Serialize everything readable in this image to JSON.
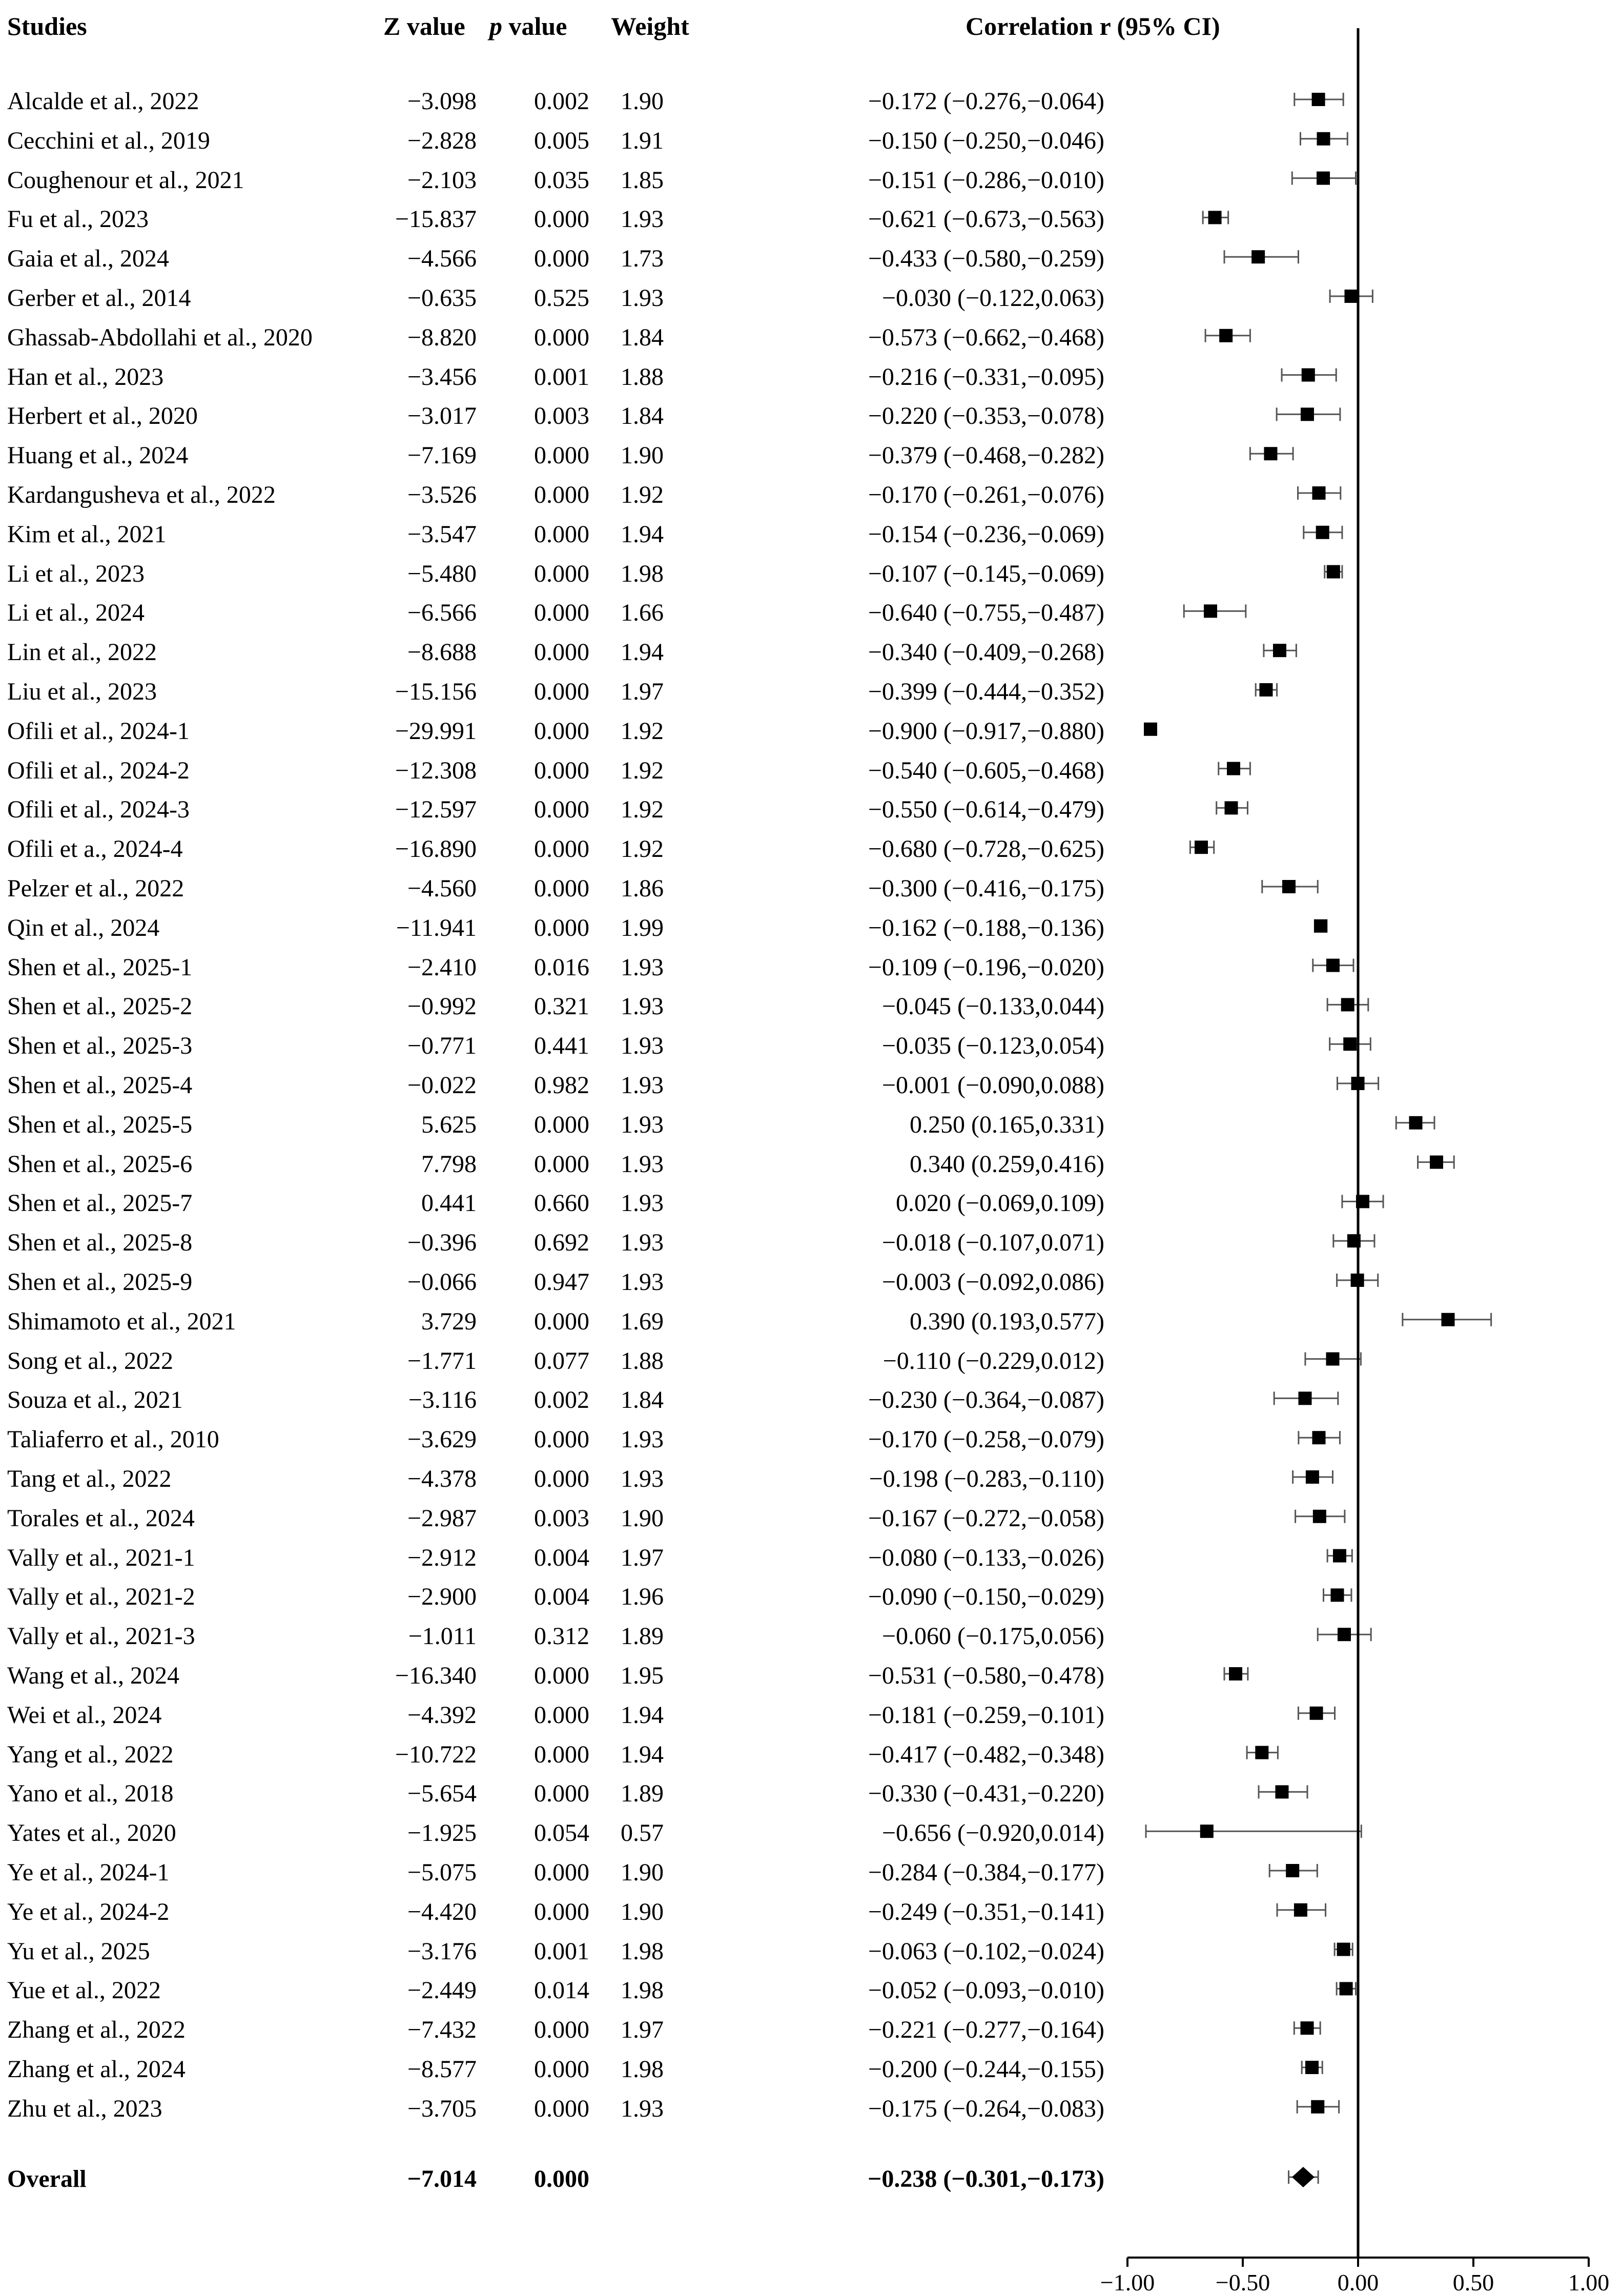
{
  "headers": {
    "study": "Studies",
    "z_value": "Z value",
    "p_value_italic": "p",
    "p_value_rest": "value",
    "weight": "Weight",
    "effect": "Correlation r (95% CI)"
  },
  "chart_data": {
    "type": "forest",
    "xlim": [
      -1.0,
      1.0
    ],
    "reference_line": 0.0,
    "ticks": [
      -1.0,
      -0.5,
      0.0,
      0.5,
      1.0
    ],
    "tick_labels": [
      "−1.00",
      "−0.50",
      "0.00",
      "0.50",
      "1.00"
    ],
    "rows": [
      {
        "study": "Alcalde et al., 2022",
        "z": "−3.098",
        "p": "0.002",
        "weight": "1.90",
        "ci_text": "−0.172 (−0.276,−0.064)",
        "r": -0.172,
        "lo": -0.276,
        "hi": -0.064
      },
      {
        "study": "Cecchini et al., 2019",
        "z": "−2.828",
        "p": "0.005",
        "weight": "1.91",
        "ci_text": "−0.150 (−0.250,−0.046)",
        "r": -0.15,
        "lo": -0.25,
        "hi": -0.046
      },
      {
        "study": "Coughenour et al., 2021",
        "z": "−2.103",
        "p": "0.035",
        "weight": "1.85",
        "ci_text": "−0.151 (−0.286,−0.010)",
        "r": -0.151,
        "lo": -0.286,
        "hi": -0.01
      },
      {
        "study": "Fu et al., 2023",
        "z": "−15.837",
        "p": "0.000",
        "weight": "1.93",
        "ci_text": "−0.621 (−0.673,−0.563)",
        "r": -0.621,
        "lo": -0.673,
        "hi": -0.563
      },
      {
        "study": "Gaia et al., 2024",
        "z": "−4.566",
        "p": "0.000",
        "weight": "1.73",
        "ci_text": "−0.433 (−0.580,−0.259)",
        "r": -0.433,
        "lo": -0.58,
        "hi": -0.259
      },
      {
        "study": "Gerber et al., 2014",
        "z": "−0.635",
        "p": "0.525",
        "weight": "1.93",
        "ci_text": "−0.030 (−0.122,0.063)",
        "r": -0.03,
        "lo": -0.122,
        "hi": 0.063
      },
      {
        "study": "Ghassab-Abdollahi et al., 2020",
        "z": "−8.820",
        "p": "0.000",
        "weight": "1.84",
        "ci_text": "−0.573 (−0.662,−0.468)",
        "r": -0.573,
        "lo": -0.662,
        "hi": -0.468
      },
      {
        "study": "Han et al., 2023",
        "z": "−3.456",
        "p": "0.001",
        "weight": "1.88",
        "ci_text": "−0.216 (−0.331,−0.095)",
        "r": -0.216,
        "lo": -0.331,
        "hi": -0.095
      },
      {
        "study": "Herbert et al., 2020",
        "z": "−3.017",
        "p": "0.003",
        "weight": "1.84",
        "ci_text": "−0.220 (−0.353,−0.078)",
        "r": -0.22,
        "lo": -0.353,
        "hi": -0.078
      },
      {
        "study": "Huang et al., 2024",
        "z": "−7.169",
        "p": "0.000",
        "weight": "1.90",
        "ci_text": "−0.379 (−0.468,−0.282)",
        "r": -0.379,
        "lo": -0.468,
        "hi": -0.282
      },
      {
        "study": "Kardangusheva et al., 2022",
        "z": "−3.526",
        "p": "0.000",
        "weight": "1.92",
        "ci_text": "−0.170 (−0.261,−0.076)",
        "r": -0.17,
        "lo": -0.261,
        "hi": -0.076
      },
      {
        "study": "Kim et al., 2021",
        "z": "−3.547",
        "p": "0.000",
        "weight": "1.94",
        "ci_text": "−0.154 (−0.236,−0.069)",
        "r": -0.154,
        "lo": -0.236,
        "hi": -0.069
      },
      {
        "study": "Li et al., 2023",
        "z": "−5.480",
        "p": "0.000",
        "weight": "1.98",
        "ci_text": "−0.107 (−0.145,−0.069)",
        "r": -0.107,
        "lo": -0.145,
        "hi": -0.069
      },
      {
        "study": "Li et al., 2024",
        "z": "−6.566",
        "p": "0.000",
        "weight": "1.66",
        "ci_text": "−0.640 (−0.755,−0.487)",
        "r": -0.64,
        "lo": -0.755,
        "hi": -0.487
      },
      {
        "study": "Lin et al., 2022",
        "z": "−8.688",
        "p": "0.000",
        "weight": "1.94",
        "ci_text": "−0.340 (−0.409,−0.268)",
        "r": -0.34,
        "lo": -0.409,
        "hi": -0.268
      },
      {
        "study": "Liu et al., 2023",
        "z": "−15.156",
        "p": "0.000",
        "weight": "1.97",
        "ci_text": "−0.399 (−0.444,−0.352)",
        "r": -0.399,
        "lo": -0.444,
        "hi": -0.352
      },
      {
        "study": "Ofili et al., 2024-1",
        "z": "−29.991",
        "p": "0.000",
        "weight": "1.92",
        "ci_text": "−0.900 (−0.917,−0.880)",
        "r": -0.9,
        "lo": -0.917,
        "hi": -0.88
      },
      {
        "study": "Ofili et al., 2024-2",
        "z": "−12.308",
        "p": "0.000",
        "weight": "1.92",
        "ci_text": "−0.540 (−0.605,−0.468)",
        "r": -0.54,
        "lo": -0.605,
        "hi": -0.468
      },
      {
        "study": "Ofili et al., 2024-3",
        "z": "−12.597",
        "p": "0.000",
        "weight": "1.92",
        "ci_text": "−0.550 (−0.614,−0.479)",
        "r": -0.55,
        "lo": -0.614,
        "hi": -0.479
      },
      {
        "study": "Ofili et a., 2024-4",
        "z": "−16.890",
        "p": "0.000",
        "weight": "1.92",
        "ci_text": "−0.680 (−0.728,−0.625)",
        "r": -0.68,
        "lo": -0.728,
        "hi": -0.625
      },
      {
        "study": "Pelzer et al., 2022",
        "z": "−4.560",
        "p": "0.000",
        "weight": "1.86",
        "ci_text": "−0.300 (−0.416,−0.175)",
        "r": -0.3,
        "lo": -0.416,
        "hi": -0.175
      },
      {
        "study": "Qin et al., 2024",
        "z": "−11.941",
        "p": "0.000",
        "weight": "1.99",
        "ci_text": "−0.162 (−0.188,−0.136)",
        "r": -0.162,
        "lo": -0.188,
        "hi": -0.136
      },
      {
        "study": "Shen et al., 2025-1",
        "z": "−2.410",
        "p": "0.016",
        "weight": "1.93",
        "ci_text": "−0.109 (−0.196,−0.020)",
        "r": -0.109,
        "lo": -0.196,
        "hi": -0.02
      },
      {
        "study": "Shen et al., 2025-2",
        "z": "−0.992",
        "p": "0.321",
        "weight": "1.93",
        "ci_text": "−0.045 (−0.133,0.044)",
        "r": -0.045,
        "lo": -0.133,
        "hi": 0.044
      },
      {
        "study": "Shen et al., 2025-3",
        "z": "−0.771",
        "p": "0.441",
        "weight": "1.93",
        "ci_text": "−0.035 (−0.123,0.054)",
        "r": -0.035,
        "lo": -0.123,
        "hi": 0.054
      },
      {
        "study": "Shen et al., 2025-4",
        "z": "−0.022",
        "p": "0.982",
        "weight": "1.93",
        "ci_text": "−0.001 (−0.090,0.088)",
        "r": -0.001,
        "lo": -0.09,
        "hi": 0.088
      },
      {
        "study": "Shen et al., 2025-5",
        "z": "5.625",
        "p": "0.000",
        "weight": "1.93",
        "ci_text": "0.250 (0.165,0.331)",
        "r": 0.25,
        "lo": 0.165,
        "hi": 0.331
      },
      {
        "study": "Shen et al., 2025-6",
        "z": "7.798",
        "p": "0.000",
        "weight": "1.93",
        "ci_text": "0.340 (0.259,0.416)",
        "r": 0.34,
        "lo": 0.259,
        "hi": 0.416
      },
      {
        "study": "Shen et al., 2025-7",
        "z": "0.441",
        "p": "0.660",
        "weight": "1.93",
        "ci_text": "0.020 (−0.069,0.109)",
        "r": 0.02,
        "lo": -0.069,
        "hi": 0.109
      },
      {
        "study": "Shen et al., 2025-8",
        "z": "−0.396",
        "p": "0.692",
        "weight": "1.93",
        "ci_text": "−0.018 (−0.107,0.071)",
        "r": -0.018,
        "lo": -0.107,
        "hi": 0.071
      },
      {
        "study": "Shen et al., 2025-9",
        "z": "−0.066",
        "p": "0.947",
        "weight": "1.93",
        "ci_text": "−0.003 (−0.092,0.086)",
        "r": -0.003,
        "lo": -0.092,
        "hi": 0.086
      },
      {
        "study": "Shimamoto et al., 2021",
        "z": "3.729",
        "p": "0.000",
        "weight": "1.69",
        "ci_text": "0.390 (0.193,0.577)",
        "r": 0.39,
        "lo": 0.193,
        "hi": 0.577
      },
      {
        "study": "Song et al., 2022",
        "z": "−1.771",
        "p": "0.077",
        "weight": "1.88",
        "ci_text": "−0.110 (−0.229,0.012)",
        "r": -0.11,
        "lo": -0.229,
        "hi": 0.012
      },
      {
        "study": "Souza et al., 2021",
        "z": "−3.116",
        "p": "0.002",
        "weight": "1.84",
        "ci_text": "−0.230 (−0.364,−0.087)",
        "r": -0.23,
        "lo": -0.364,
        "hi": -0.087
      },
      {
        "study": "Taliaferro et al., 2010",
        "z": "−3.629",
        "p": "0.000",
        "weight": "1.93",
        "ci_text": "−0.170 (−0.258,−0.079)",
        "r": -0.17,
        "lo": -0.258,
        "hi": -0.079
      },
      {
        "study": "Tang et al., 2022",
        "z": "−4.378",
        "p": "0.000",
        "weight": "1.93",
        "ci_text": "−0.198 (−0.283,−0.110)",
        "r": -0.198,
        "lo": -0.283,
        "hi": -0.11
      },
      {
        "study": "Torales et al., 2024",
        "z": "−2.987",
        "p": "0.003",
        "weight": "1.90",
        "ci_text": "−0.167 (−0.272,−0.058)",
        "r": -0.167,
        "lo": -0.272,
        "hi": -0.058
      },
      {
        "study": "Vally et al., 2021-1",
        "z": "−2.912",
        "p": "0.004",
        "weight": "1.97",
        "ci_text": "−0.080 (−0.133,−0.026)",
        "r": -0.08,
        "lo": -0.133,
        "hi": -0.026
      },
      {
        "study": "Vally et al., 2021-2",
        "z": "−2.900",
        "p": "0.004",
        "weight": "1.96",
        "ci_text": "−0.090 (−0.150,−0.029)",
        "r": -0.09,
        "lo": -0.15,
        "hi": -0.029
      },
      {
        "study": "Vally et al., 2021-3",
        "z": "−1.011",
        "p": "0.312",
        "weight": "1.89",
        "ci_text": "−0.060 (−0.175,0.056)",
        "r": -0.06,
        "lo": -0.175,
        "hi": 0.056
      },
      {
        "study": "Wang et al., 2024",
        "z": "−16.340",
        "p": "0.000",
        "weight": "1.95",
        "ci_text": "−0.531 (−0.580,−0.478)",
        "r": -0.531,
        "lo": -0.58,
        "hi": -0.478
      },
      {
        "study": "Wei et al., 2024",
        "z": "−4.392",
        "p": "0.000",
        "weight": "1.94",
        "ci_text": "−0.181 (−0.259,−0.101)",
        "r": -0.181,
        "lo": -0.259,
        "hi": -0.101
      },
      {
        "study": "Yang et al., 2022",
        "z": "−10.722",
        "p": "0.000",
        "weight": "1.94",
        "ci_text": "−0.417 (−0.482,−0.348)",
        "r": -0.417,
        "lo": -0.482,
        "hi": -0.348
      },
      {
        "study": "Yano et al., 2018",
        "z": "−5.654",
        "p": "0.000",
        "weight": "1.89",
        "ci_text": "−0.330 (−0.431,−0.220)",
        "r": -0.33,
        "lo": -0.431,
        "hi": -0.22
      },
      {
        "study": "Yates et al., 2020",
        "z": "−1.925",
        "p": "0.054",
        "weight": "0.57",
        "ci_text": "−0.656 (−0.920,0.014)",
        "r": -0.656,
        "lo": -0.92,
        "hi": 0.014
      },
      {
        "study": "Ye et al., 2024-1",
        "z": "−5.075",
        "p": "0.000",
        "weight": "1.90",
        "ci_text": "−0.284 (−0.384,−0.177)",
        "r": -0.284,
        "lo": -0.384,
        "hi": -0.177
      },
      {
        "study": "Ye et al., 2024-2",
        "z": "−4.420",
        "p": "0.000",
        "weight": "1.90",
        "ci_text": "−0.249 (−0.351,−0.141)",
        "r": -0.249,
        "lo": -0.351,
        "hi": -0.141
      },
      {
        "study": "Yu et al., 2025",
        "z": "−3.176",
        "p": "0.001",
        "weight": "1.98",
        "ci_text": "−0.063 (−0.102,−0.024)",
        "r": -0.063,
        "lo": -0.102,
        "hi": -0.024
      },
      {
        "study": "Yue et al., 2022",
        "z": "−2.449",
        "p": "0.014",
        "weight": "1.98",
        "ci_text": "−0.052 (−0.093,−0.010)",
        "r": -0.052,
        "lo": -0.093,
        "hi": -0.01
      },
      {
        "study": "Zhang et al., 2022",
        "z": "−7.432",
        "p": "0.000",
        "weight": "1.97",
        "ci_text": "−0.221 (−0.277,−0.164)",
        "r": -0.221,
        "lo": -0.277,
        "hi": -0.164
      },
      {
        "study": "Zhang et al., 2024",
        "z": "−8.577",
        "p": "0.000",
        "weight": "1.98",
        "ci_text": "−0.200 (−0.244,−0.155)",
        "r": -0.2,
        "lo": -0.244,
        "hi": -0.155
      },
      {
        "study": "Zhu et al., 2023",
        "z": "−3.705",
        "p": "0.000",
        "weight": "1.93",
        "ci_text": "−0.175 (−0.264,−0.083)",
        "r": -0.175,
        "lo": -0.264,
        "hi": -0.083
      }
    ],
    "overall": {
      "study": "Overall",
      "z": "−7.014",
      "p": "0.000",
      "weight": "",
      "ci_text": "−0.238 (−0.301,−0.173)",
      "r": -0.238,
      "lo": -0.301,
      "hi": -0.173
    }
  }
}
